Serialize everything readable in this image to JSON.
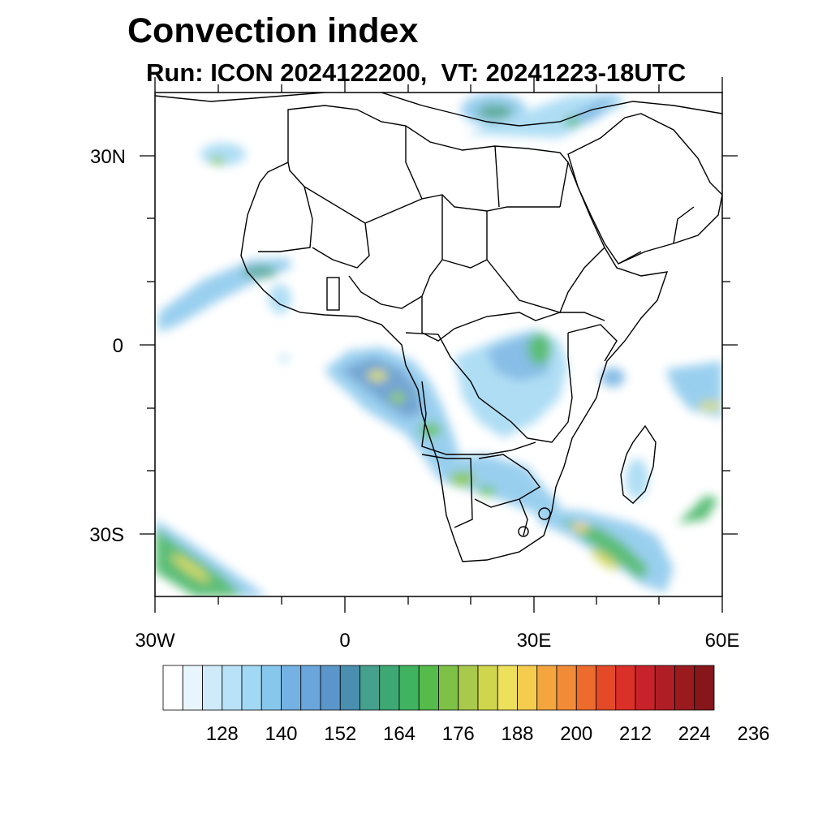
{
  "title": "Convection index",
  "subtitle": "Run: ICON 2024122200,  VT: 20241223-18UTC",
  "axes": {
    "lat_labels": [
      {
        "text": "30N",
        "value": 30
      },
      {
        "text": "0",
        "value": 0
      },
      {
        "text": "30S",
        "value": -30
      }
    ],
    "lon_labels": [
      {
        "text": "30W",
        "value": -30
      },
      {
        "text": "0",
        "value": 0
      },
      {
        "text": "30E",
        "value": 30
      },
      {
        "text": "60E",
        "value": 60
      }
    ],
    "lon_range": [
      -30,
      60
    ],
    "lat_range": [
      -40,
      40
    ]
  },
  "colorbar": {
    "colors": [
      "#ffffff",
      "#e8f5fc",
      "#cfeaf8",
      "#b9e1f7",
      "#a1d8f3",
      "#88c7ec",
      "#73b2e2",
      "#6aa6db",
      "#5b96cb",
      "#4a8eb0",
      "#45a08e",
      "#3ea874",
      "#3fb360",
      "#55bb4a",
      "#7dc146",
      "#a8c94b",
      "#d0d54e",
      "#ede05b",
      "#f6cc4f",
      "#f4a53e",
      "#f28b37",
      "#ec6b2d",
      "#e44a28",
      "#da3027",
      "#c8232a",
      "#b01d24",
      "#9a1a1e",
      "#86161a"
    ],
    "labels": [
      "128",
      "140",
      "152",
      "164",
      "176",
      "188",
      "200",
      "212",
      "224",
      "236"
    ]
  }
}
